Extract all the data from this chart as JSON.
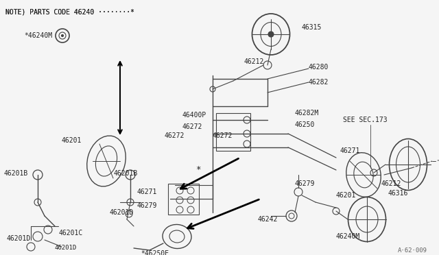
{
  "bg_color": "#f5f5f5",
  "line_color": "#444444",
  "text_color": "#222222",
  "title_note": "NOTE) PARTS CODE 46240 ········*",
  "watermark": "A·62·009",
  "see_sec": "SEE SEC.173",
  "figsize": [
    6.4,
    3.72
  ],
  "dpi": 100
}
